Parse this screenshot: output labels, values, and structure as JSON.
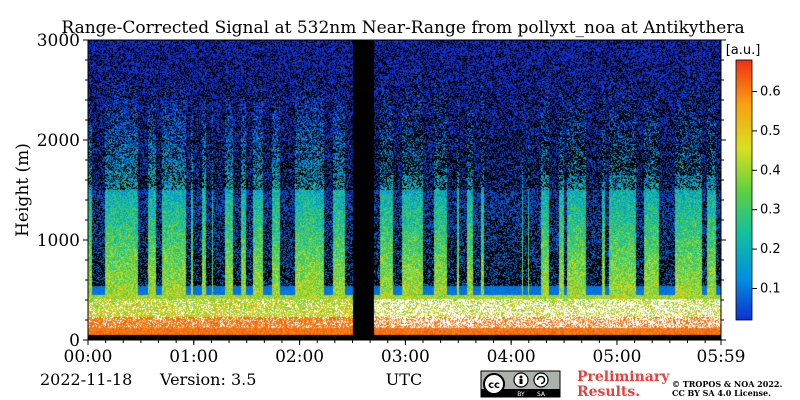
{
  "chart_data": {
    "type": "heatmap",
    "title": "Range-Corrected Signal at 532nm Near-Range from pollyxt_noa at Antikythera",
    "ylabel": "Height (m)",
    "xlabel": "UTC",
    "x_ticks": [
      "00:00",
      "01:00",
      "02:00",
      "03:00",
      "04:00",
      "05:00",
      "05:59"
    ],
    "x_range": [
      "00:00",
      "05:59"
    ],
    "y_ticks": [
      0,
      1000,
      2000,
      3000
    ],
    "ylim": [
      0,
      3000
    ],
    "colorbar": {
      "label": "[a.u.]",
      "ticks": [
        0.1,
        0.2,
        0.3,
        0.4,
        0.5,
        0.6
      ],
      "range": [
        0.02,
        0.68
      ],
      "colors": [
        "#1030d0",
        "#0090e0",
        "#10c0a0",
        "#60d040",
        "#d8e020",
        "#f8a010",
        "#f03010"
      ]
    },
    "data_gap": [
      "02:30",
      "02:42"
    ],
    "saturated_color": "#ffffff",
    "no_signal_color": "#000000"
  },
  "footer": {
    "date": "2022-11-18",
    "version": "Version: 3.5",
    "preliminary_line1": "Preliminary",
    "preliminary_line2": "Results.",
    "copyright_line1": "© TROPOS & NOA 2022.",
    "copyright_line2": "CC BY SA 4.0 License.",
    "license_badge": [
      "cc",
      "BY",
      "SA"
    ]
  }
}
